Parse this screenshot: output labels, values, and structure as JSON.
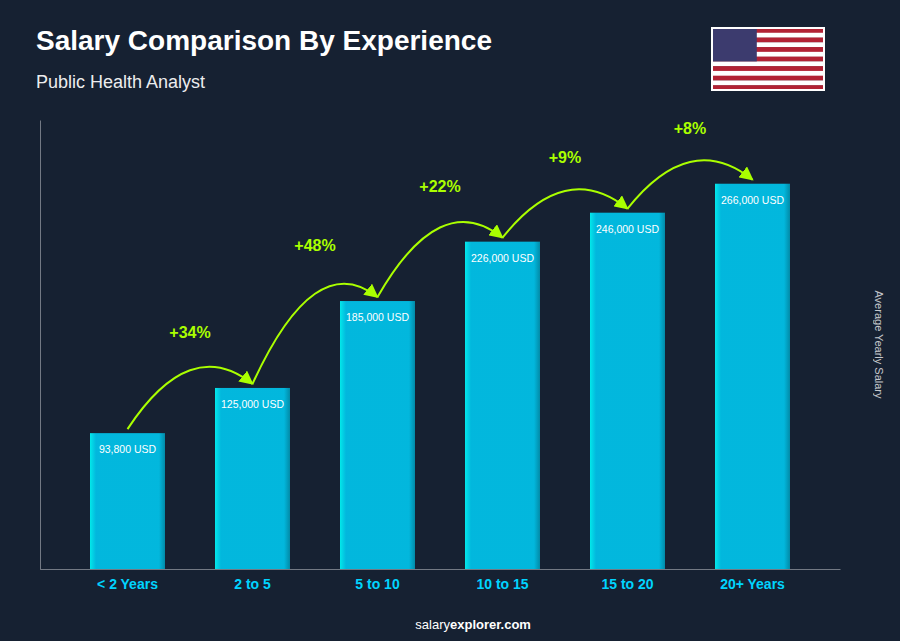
{
  "chart_data": {
    "type": "bar",
    "title": "Salary Comparison By Experience",
    "subtitle": "Public Health Analyst",
    "categories": [
      "< 2 Years",
      "2 to 5",
      "5 to 10",
      "10 to 15",
      "15 to 20",
      "20+ Years"
    ],
    "values": [
      93800,
      125000,
      185000,
      226000,
      246000,
      266000
    ],
    "value_labels": [
      "93,800 USD",
      "125,000 USD",
      "185,000 USD",
      "226,000 USD",
      "246,000 USD",
      "266,000 USD"
    ],
    "data_labels": true,
    "color": "#00c8f0",
    "ylabel": "Average Yearly Salary",
    "ylim": [
      0,
      310000
    ],
    "tick_labels": "x",
    "annotations": [
      {
        "text": "+34%",
        "color": "#aaff00"
      },
      {
        "text": "+48%",
        "color": "#aaff00"
      },
      {
        "text": "+22%",
        "color": "#aaff00"
      },
      {
        "text": "+9%",
        "color": "#aaff00"
      },
      {
        "text": "+8%",
        "color": "#aaff00"
      }
    ],
    "footer": [
      "salary",
      "explorer.com"
    ]
  }
}
